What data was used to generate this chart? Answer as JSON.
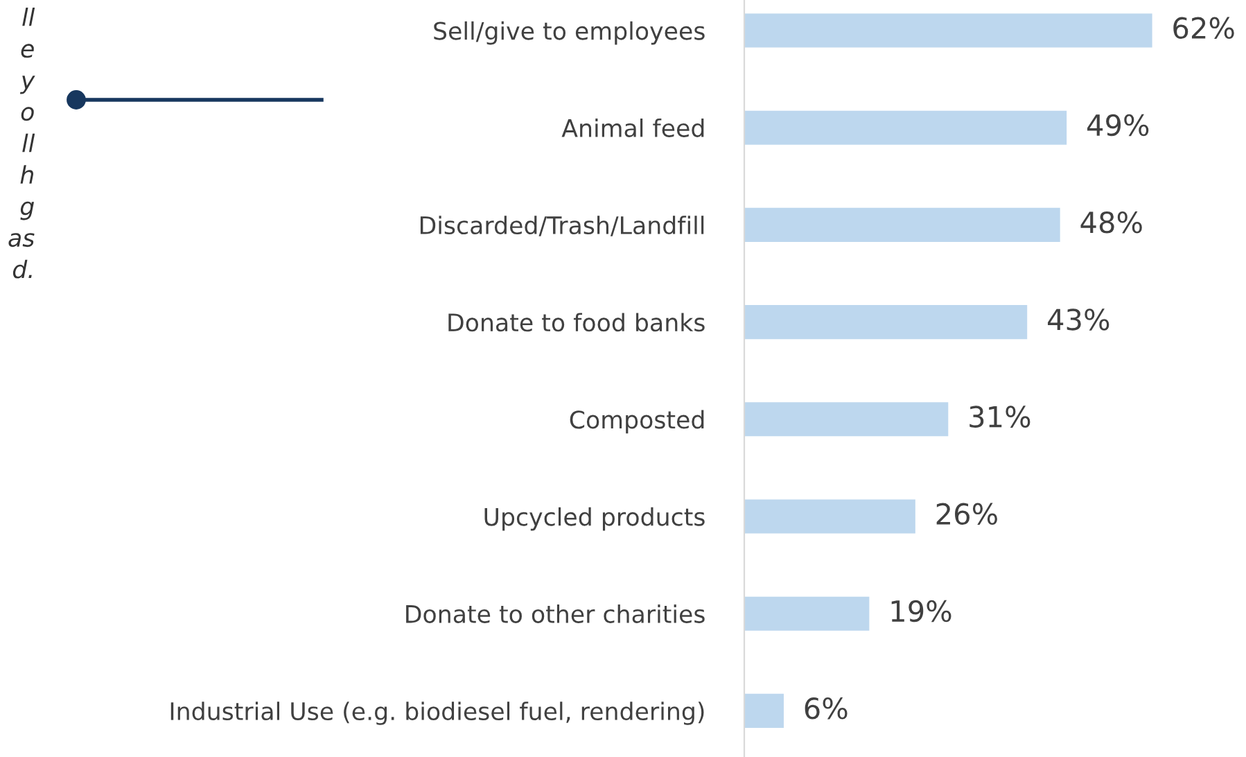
{
  "chart_data": {
    "type": "bar",
    "orientation": "horizontal",
    "data_labels": true,
    "grid": false,
    "categories": [
      "Sell/give to employees",
      "Animal feed",
      "Discarded/Trash/Landfill",
      "Donate to food banks",
      "Composted",
      "Upcycled products",
      "Donate to other charities",
      "Industrial Use (e.g. biodiesel fuel, rendering)"
    ],
    "values": [
      62,
      49,
      48,
      43,
      31,
      26,
      19,
      6
    ],
    "value_labels": [
      "62%",
      "49%",
      "48%",
      "43%",
      "31%",
      "26%",
      "19%",
      "6%"
    ],
    "color": "#bdd7ee",
    "annotations": [
      "ll\ne\ny\no\nll\nh\ng\nas\nd."
    ]
  }
}
